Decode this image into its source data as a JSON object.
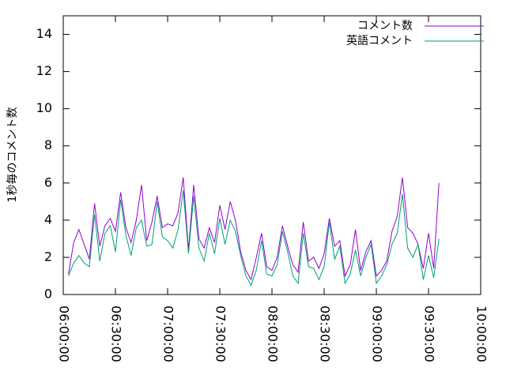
{
  "chart_data": {
    "type": "line",
    "ylabel": "1秒毎のコメント数",
    "x": [
      "06:03:00",
      "06:06:00",
      "06:09:00",
      "06:12:00",
      "06:15:00",
      "06:18:00",
      "06:21:00",
      "06:24:00",
      "06:27:00",
      "06:30:00",
      "06:33:00",
      "06:36:00",
      "06:39:00",
      "06:42:00",
      "06:45:00",
      "06:48:00",
      "06:51:00",
      "06:54:00",
      "06:57:00",
      "07:00:00",
      "07:03:00",
      "07:06:00",
      "07:09:00",
      "07:12:00",
      "07:15:00",
      "07:18:00",
      "07:21:00",
      "07:24:00",
      "07:27:00",
      "07:30:00",
      "07:33:00",
      "07:36:00",
      "07:39:00",
      "07:42:00",
      "07:45:00",
      "07:48:00",
      "07:51:00",
      "07:54:00",
      "07:57:00",
      "08:00:00",
      "08:03:00",
      "08:06:00",
      "08:09:00",
      "08:12:00",
      "08:15:00",
      "08:18:00",
      "08:21:00",
      "08:24:00",
      "08:27:00",
      "08:30:00",
      "08:33:00",
      "08:36:00",
      "08:39:00",
      "08:42:00",
      "08:45:00",
      "08:48:00",
      "08:51:00",
      "08:54:00",
      "08:57:00",
      "09:00:00",
      "09:03:00",
      "09:06:00",
      "09:09:00",
      "09:12:00",
      "09:15:00",
      "09:18:00",
      "09:21:00",
      "09:24:00",
      "09:27:00",
      "09:30:00",
      "09:33:00",
      "09:36:00"
    ],
    "series": [
      {
        "name": "コメント数",
        "color": "#9400d3",
        "values": [
          1.1,
          2.8,
          3.5,
          2.7,
          1.9,
          4.9,
          2.6,
          3.7,
          4.1,
          3.4,
          5.5,
          3.6,
          2.8,
          4.0,
          5.9,
          2.9,
          3.9,
          5.3,
          3.6,
          3.8,
          3.7,
          4.4,
          6.3,
          2.4,
          5.9,
          3.0,
          2.5,
          3.6,
          2.8,
          4.8,
          3.5,
          5.0,
          4.0,
          2.3,
          1.3,
          0.8,
          2.0,
          3.3,
          1.5,
          1.3,
          2.0,
          3.7,
          2.6,
          1.6,
          1.2,
          3.9,
          1.8,
          2.0,
          1.4,
          2.2,
          4.1,
          2.6,
          2.9,
          1.0,
          1.6,
          3.5,
          1.3,
          2.3,
          2.9,
          1.0,
          1.3,
          1.8,
          3.4,
          4.2,
          6.3,
          3.6,
          3.3,
          2.7,
          1.4,
          3.3,
          1.4,
          6.0
        ]
      },
      {
        "name": "英語コメント",
        "color": "#009e73",
        "values": [
          1.0,
          1.7,
          2.1,
          1.7,
          1.5,
          4.3,
          1.8,
          3.3,
          3.7,
          2.3,
          5.1,
          3.2,
          2.1,
          3.6,
          4.0,
          2.6,
          2.7,
          5.0,
          3.1,
          2.9,
          2.5,
          3.5,
          5.6,
          2.2,
          5.3,
          2.5,
          1.8,
          3.3,
          2.2,
          4.1,
          2.7,
          4.0,
          3.4,
          2.1,
          1.0,
          0.5,
          1.3,
          2.9,
          1.1,
          1.0,
          1.6,
          3.4,
          2.3,
          1.0,
          0.6,
          3.3,
          1.5,
          1.4,
          0.8,
          1.5,
          3.9,
          1.9,
          2.6,
          0.6,
          1.1,
          2.4,
          1.0,
          2.0,
          2.7,
          0.6,
          1.0,
          1.6,
          2.7,
          3.3,
          5.4,
          2.5,
          2.0,
          2.7,
          0.8,
          2.1,
          0.9,
          3.0
        ]
      }
    ],
    "xlim": [
      "06:00:00",
      "10:00:00"
    ],
    "xticks": [
      "06:00:00",
      "06:30:00",
      "07:00:00",
      "07:30:00",
      "08:00:00",
      "08:30:00",
      "09:00:00",
      "09:30:00",
      "10:00:00"
    ],
    "ylim": [
      0,
      15
    ],
    "yticks": [
      0,
      2,
      4,
      6,
      8,
      10,
      12,
      14
    ],
    "legend": "top-right"
  }
}
